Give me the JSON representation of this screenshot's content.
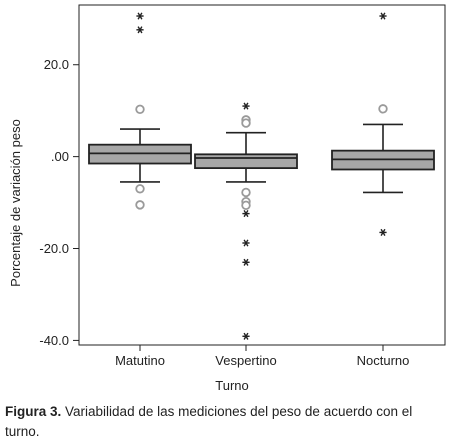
{
  "chart_data": {
    "type": "boxplot",
    "xlabel": "Turno",
    "ylabel": "Porcentaje de variación peso",
    "ylim": [
      -41,
      33
    ],
    "yticks": [
      20.0,
      0.0,
      -20.0,
      -40.0
    ],
    "ytick_labels": [
      "20.0",
      ".00",
      "-20.0",
      "-40.0"
    ],
    "categories": [
      "Matutino",
      "Vespertino",
      "Nocturno"
    ],
    "colors": {
      "box_fill": "#a7a7a7",
      "stroke": "#222222",
      "outlier_circle": "#9a9a9a"
    },
    "boxes": [
      {
        "name": "Matutino",
        "whisker_low": -5.5,
        "q1": -1.5,
        "median": 0.7,
        "q3": 2.6,
        "whisker_high": 6.0,
        "outliers_circle": [
          10.3,
          -7.0,
          -10.5
        ],
        "outliers_star": [
          30.6,
          27.6
        ]
      },
      {
        "name": "Vespertino",
        "whisker_low": -5.5,
        "q1": -2.5,
        "median": -0.3,
        "q3": 0.5,
        "whisker_high": 5.2,
        "outliers_circle": [
          8.0,
          7.3,
          -7.8,
          -9.8,
          -10.6
        ],
        "outliers_star": [
          11.0,
          -12.4,
          -18.8,
          -23.0,
          -39.1
        ]
      },
      {
        "name": "Nocturno",
        "whisker_low": -7.8,
        "q1": -2.8,
        "median": -0.6,
        "q3": 1.3,
        "whisker_high": 7.0,
        "outliers_circle": [
          10.4
        ],
        "outliers_star": [
          30.6,
          -16.5
        ]
      }
    ]
  },
  "caption": {
    "label": "Figura 3.",
    "text": "Variabilidad de las mediciones del peso de acuerdo con el turno."
  }
}
